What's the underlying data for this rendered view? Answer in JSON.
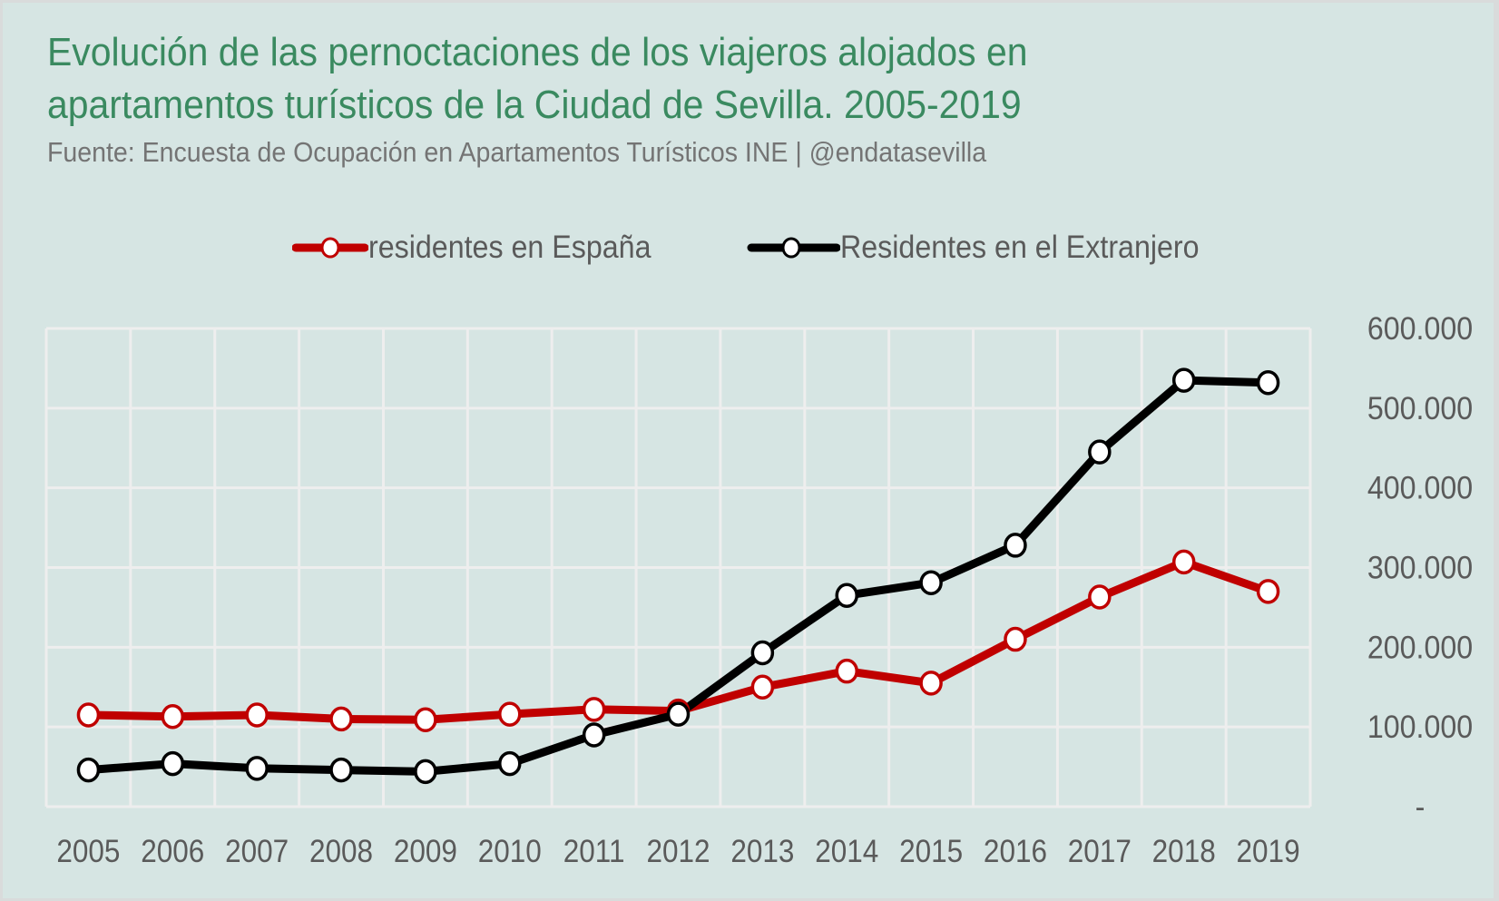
{
  "title_line1": "Evolución de las pernoctaciones de los viajeros alojados en",
  "title_line2": "apartamentos turísticos de la Ciudad de Sevilla. 2005-2019",
  "subtitle": "Fuente: Encuesta de Ocupación en Apartamentos Turísticos INE | @endatasevilla",
  "colors": {
    "background": "#d6e5e3",
    "title": "#3a8a60",
    "spain": "#c00000",
    "foreign": "#000000",
    "grid": "#eeeeee"
  },
  "chart_data": {
    "type": "line",
    "title": "Evolución de las pernoctaciones de los viajeros alojados en apartamentos turísticos de la Ciudad de Sevilla. 2005-2019",
    "xlabel": "",
    "ylabel": "",
    "x": [
      "2005",
      "2006",
      "2007",
      "2008",
      "2009",
      "2010",
      "2011",
      "2012",
      "2013",
      "2014",
      "2015",
      "2016",
      "2017",
      "2018",
      "2019"
    ],
    "ylim": [
      0,
      600000
    ],
    "yticks": [
      0,
      100000,
      200000,
      300000,
      400000,
      500000,
      600000
    ],
    "ytick_labels": [
      "-",
      "100.000",
      "200.000",
      "300.000",
      "400.000",
      "500.000",
      "600.000"
    ],
    "y_axis_side": "right",
    "grid": true,
    "legend_position": "top-center",
    "series": [
      {
        "name": "residentes en España",
        "color": "#c00000",
        "values": [
          115000,
          113000,
          115000,
          110000,
          109000,
          116000,
          122000,
          120000,
          150000,
          170000,
          155000,
          210000,
          263000,
          307000,
          270000
        ]
      },
      {
        "name": "Residentes en el Extranjero",
        "color": "#000000",
        "values": [
          46000,
          54000,
          48000,
          46000,
          44000,
          54000,
          90000,
          116000,
          193000,
          265000,
          281000,
          328000,
          445000,
          535000,
          532000
        ]
      }
    ]
  }
}
